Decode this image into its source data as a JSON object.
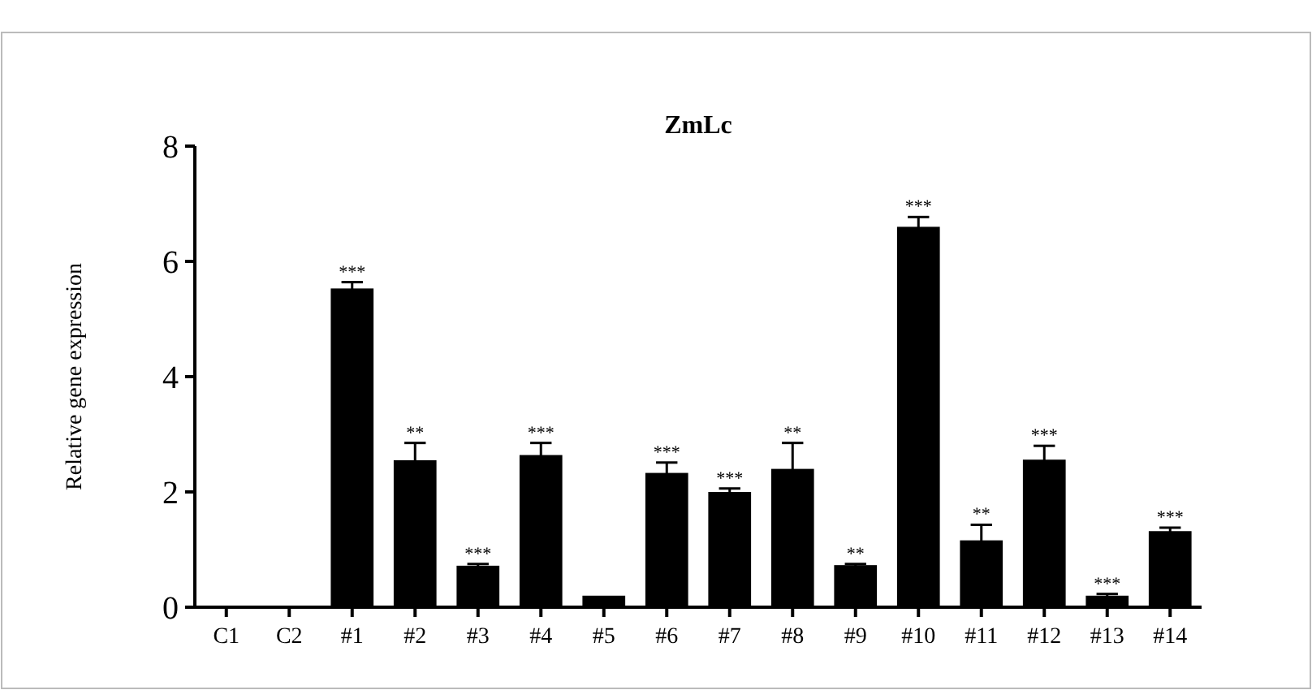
{
  "chart_data": {
    "type": "bar",
    "title": "ZmLc",
    "ylabel": "Relative gene expression",
    "categories": [
      "C1",
      "C2",
      "#1",
      "#2",
      "#3",
      "#4",
      "#5",
      "#6",
      "#7",
      "#8",
      "#9",
      "#10",
      "#11",
      "#12",
      "#13",
      "#14"
    ],
    "values": [
      0,
      0,
      5.53,
      2.55,
      0.72,
      2.64,
      0.2,
      2.33,
      2.0,
      2.4,
      0.73,
      6.6,
      1.16,
      2.56,
      0.2,
      1.32
    ],
    "errors": [
      null,
      null,
      0.11,
      0.3,
      0.03,
      0.21,
      null,
      0.18,
      0.06,
      0.45,
      0.02,
      0.17,
      0.27,
      0.24,
      0.03,
      0.06
    ],
    "color": "#000000",
    "ylim": [
      0,
      8
    ],
    "yticks": [
      0,
      2,
      4,
      6,
      8
    ],
    "grid": false,
    "annotations": [
      {
        "text": "***",
        "x": "#1",
        "y": 5.64
      },
      {
        "text": "**",
        "x": "#2",
        "y": 2.85
      },
      {
        "text": "***",
        "x": "#3",
        "y": 0.75
      },
      {
        "text": "***",
        "x": "#4",
        "y": 2.85
      },
      {
        "text": "***",
        "x": "#6",
        "y": 2.51
      },
      {
        "text": "***",
        "x": "#7",
        "y": 2.06
      },
      {
        "text": "**",
        "x": "#8",
        "y": 2.85
      },
      {
        "text": "**",
        "x": "#9",
        "y": 0.75
      },
      {
        "text": "***",
        "x": "#10",
        "y": 6.77
      },
      {
        "text": "**",
        "x": "#11",
        "y": 1.43
      },
      {
        "text": "***",
        "x": "#12",
        "y": 2.8
      },
      {
        "text": "***",
        "x": "#13",
        "y": 0.23
      },
      {
        "text": "***",
        "x": "#14",
        "y": 1.38
      }
    ]
  }
}
